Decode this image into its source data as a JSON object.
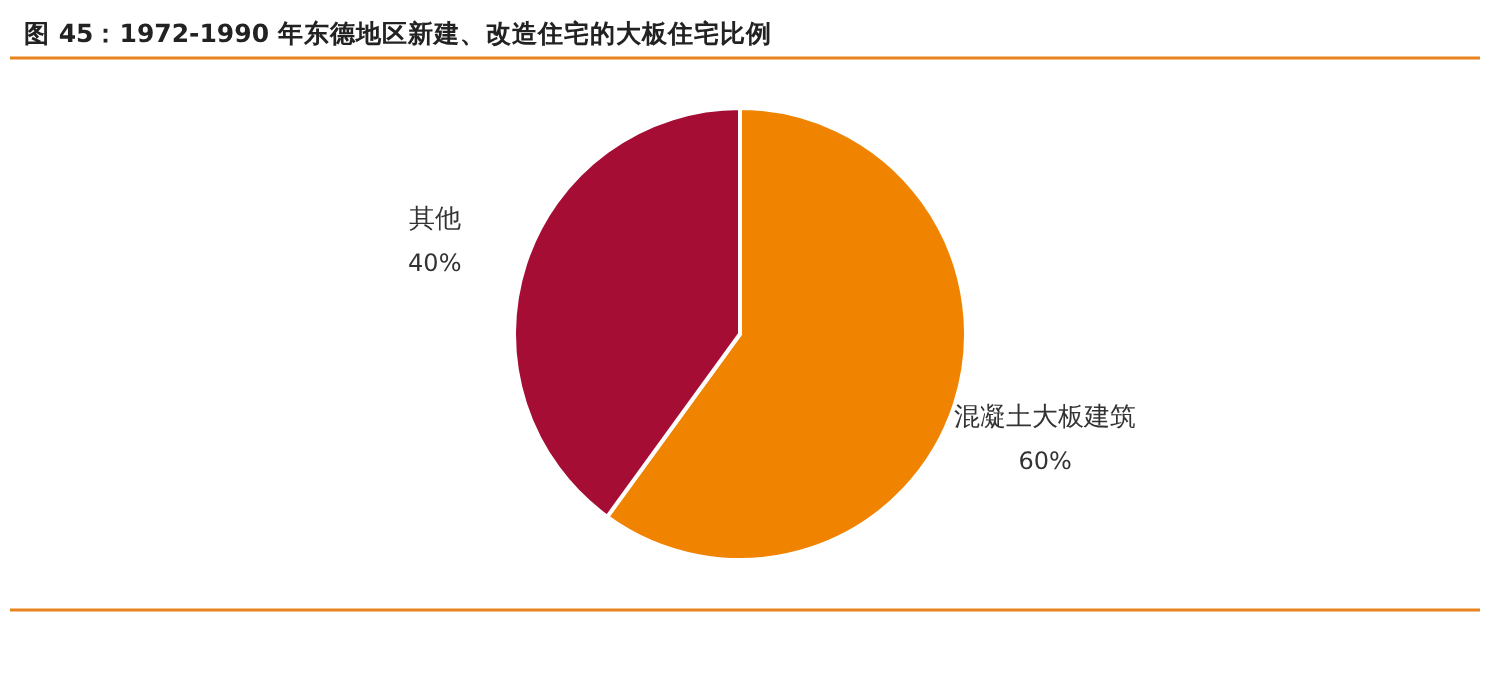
{
  "chart_data": {
    "type": "pie",
    "title": "图 45：1972-1990 年东德地区新建、改造住宅的大板住宅比例",
    "categories": [
      "混凝土大板建筑",
      "其他"
    ],
    "values": [
      60,
      40
    ],
    "colors": [
      "#f08300",
      "#a50d34"
    ],
    "value_labels": [
      "60%",
      "40%"
    ],
    "legend": false
  }
}
